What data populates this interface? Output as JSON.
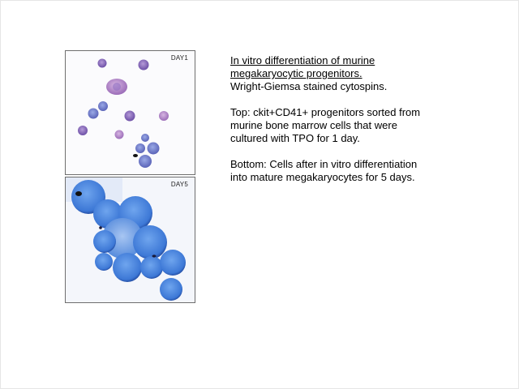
{
  "panels": {
    "top": {
      "label": "DAY1"
    },
    "bottom": {
      "label": "DAY5"
    }
  },
  "caption": {
    "title_line1": "In vitro differentiation of murine",
    "title_line2": "megakaryocytic progenitors.",
    "stain": "Wright-Giemsa stained cytospins.",
    "top_description": "Top: ckit+CD41+ progenitors sorted from murine bone marrow cells that were cultured with TPO for 1 day.",
    "bottom_description": "Bottom: Cells after in vitro differentiation into mature megakaryocytes for 5 days."
  },
  "colors": {
    "day1_cell": "#8a6ab8",
    "day1_cell_pink": "#b28acb",
    "day5_cell": "#3a78d8",
    "day5_rim": "#2a55b0"
  }
}
